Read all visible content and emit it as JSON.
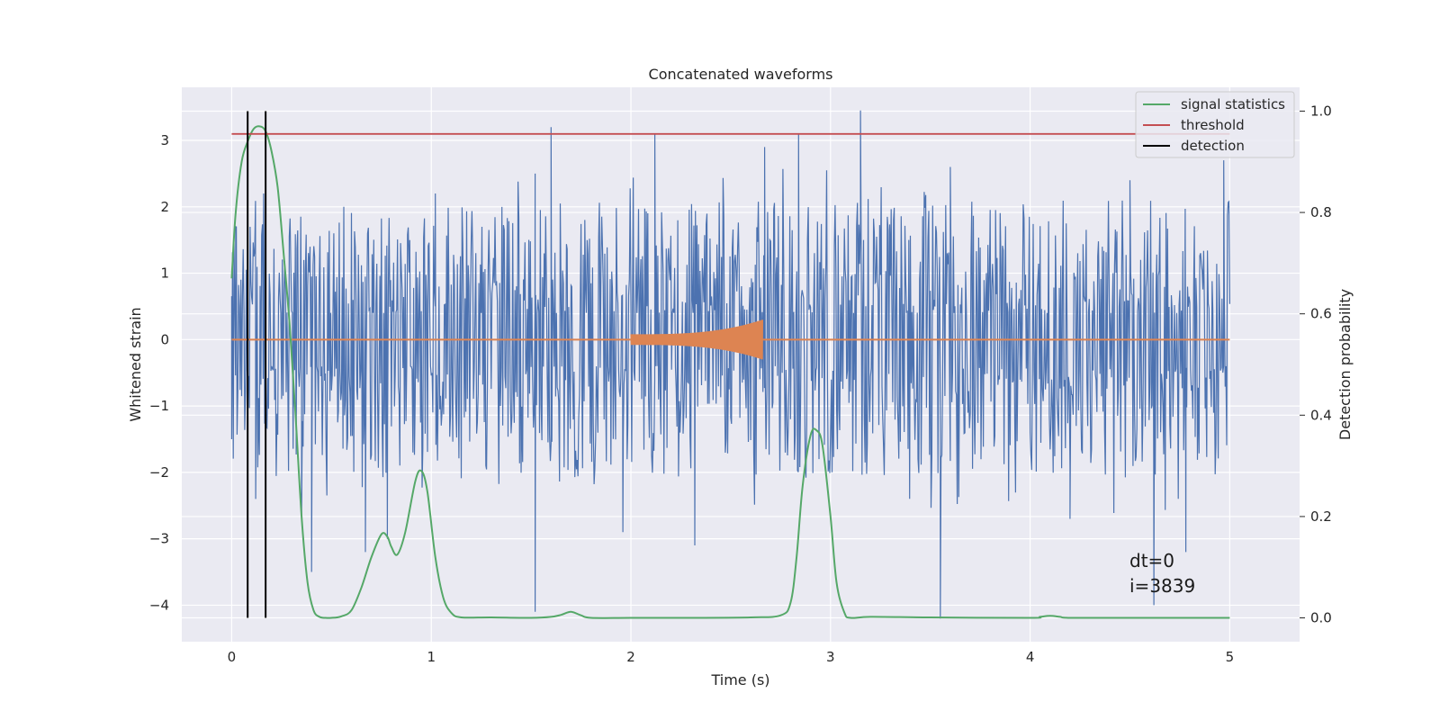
{
  "chart_data": {
    "type": "line",
    "title": "Concatenated waveforms",
    "xlabel": "Time (s)",
    "ylabel": "Whitened strain",
    "y2label": "Detection probability",
    "xlim": [
      -0.25,
      5.35
    ],
    "ylim": [
      -4.55,
      3.8
    ],
    "y2lim": [
      -0.047,
      1.047
    ],
    "x_ticks": [
      {
        "value": 0,
        "label": "0"
      },
      {
        "value": 1,
        "label": "1"
      },
      {
        "value": 2,
        "label": "2"
      },
      {
        "value": 3,
        "label": "3"
      },
      {
        "value": 4,
        "label": "4"
      },
      {
        "value": 5,
        "label": "5"
      }
    ],
    "y_ticks": [
      {
        "value": -4,
        "label": "−4"
      },
      {
        "value": -3,
        "label": "−3"
      },
      {
        "value": -2,
        "label": "−2"
      },
      {
        "value": -1,
        "label": "−1"
      },
      {
        "value": 0,
        "label": "0"
      },
      {
        "value": 1,
        "label": "1"
      },
      {
        "value": 2,
        "label": "2"
      },
      {
        "value": 3,
        "label": "3"
      }
    ],
    "y2_ticks": [
      {
        "value": 0.0,
        "label": "0.0"
      },
      {
        "value": 0.2,
        "label": "0.2"
      },
      {
        "value": 0.4,
        "label": "0.4"
      },
      {
        "value": 0.6,
        "label": "0.6"
      },
      {
        "value": 0.8,
        "label": "0.8"
      },
      {
        "value": 1.0,
        "label": "1.0"
      }
    ],
    "grid": true,
    "legend_position": "top-right",
    "colors": {
      "background": "#eaeaf2",
      "grid": "#ffffff",
      "strain": "#4c72b0",
      "injection": "#dd8452",
      "signal_statistics": "#55a868",
      "threshold": "#c44e52",
      "detection": "#000000"
    },
    "legend": [
      {
        "label": "signal statistics",
        "color": "#55a868"
      },
      {
        "label": "threshold",
        "color": "#c44e52"
      },
      {
        "label": "detection",
        "color": "#000000"
      }
    ],
    "threshold_prob": 0.955,
    "detections_x": [
      0.08,
      0.17
    ],
    "strain": {
      "t_start": 0.0,
      "t_end": 5.0,
      "typical_upper": 1.9,
      "typical_lower": -1.9,
      "peaks": [
        {
          "x": 0.0,
          "y": -1.5
        },
        {
          "x": 0.02,
          "y": 1.7
        },
        {
          "x": 0.12,
          "y": -2.4
        },
        {
          "x": 0.16,
          "y": 2.2
        },
        {
          "x": 0.35,
          "y": -2.7
        },
        {
          "x": 0.4,
          "y": -3.5
        },
        {
          "x": 0.67,
          "y": -3.2
        },
        {
          "x": 0.78,
          "y": -3.0
        },
        {
          "x": 1.02,
          "y": 2.2
        },
        {
          "x": 1.52,
          "y": 2.5
        },
        {
          "x": 1.52,
          "y": -4.1
        },
        {
          "x": 1.6,
          "y": 3.2
        },
        {
          "x": 1.96,
          "y": -2.9
        },
        {
          "x": 2.12,
          "y": 3.1
        },
        {
          "x": 2.32,
          "y": -3.1
        },
        {
          "x": 2.67,
          "y": 2.9
        },
        {
          "x": 2.84,
          "y": 3.1
        },
        {
          "x": 3.15,
          "y": 3.45
        },
        {
          "x": 3.55,
          "y": -4.2
        },
        {
          "x": 3.6,
          "y": 2.6
        },
        {
          "x": 4.2,
          "y": -2.7
        },
        {
          "x": 4.5,
          "y": 2.4
        },
        {
          "x": 4.62,
          "y": -4.0
        },
        {
          "x": 4.78,
          "y": -3.2
        },
        {
          "x": 4.97,
          "y": 2.7
        }
      ]
    },
    "injection": {
      "t_start": 2.0,
      "t_end": 2.66,
      "amp_start": 0.08,
      "amp_end": 0.3
    },
    "signal_statistics": {
      "x": [
        0.0,
        0.02,
        0.05,
        0.08,
        0.11,
        0.14,
        0.17,
        0.2,
        0.23,
        0.26,
        0.29,
        0.32,
        0.35,
        0.38,
        0.41,
        0.44,
        0.47,
        0.5,
        0.55,
        0.6,
        0.65,
        0.7,
        0.75,
        0.78,
        0.8,
        0.83,
        0.87,
        0.92,
        0.95,
        0.98,
        1.02,
        1.06,
        1.1,
        1.15,
        1.3,
        1.5,
        1.6,
        1.65,
        1.7,
        1.75,
        1.8,
        2.0,
        2.3,
        2.6,
        2.75,
        2.8,
        2.83,
        2.86,
        2.9,
        2.93,
        2.96,
        3.0,
        3.03,
        3.07,
        3.1,
        3.2,
        3.5,
        4.0,
        4.05,
        4.1,
        4.15,
        4.2,
        4.5,
        5.0
      ],
      "y": [
        0.67,
        0.8,
        0.9,
        0.94,
        0.965,
        0.97,
        0.96,
        0.92,
        0.85,
        0.72,
        0.58,
        0.4,
        0.2,
        0.07,
        0.015,
        0.002,
        0.0,
        0.0,
        0.003,
        0.015,
        0.06,
        0.12,
        0.165,
        0.16,
        0.14,
        0.125,
        0.17,
        0.27,
        0.29,
        0.25,
        0.12,
        0.04,
        0.01,
        0.001,
        0.001,
        0.0,
        0.002,
        0.006,
        0.012,
        0.005,
        0.0,
        0.0,
        0.0,
        0.001,
        0.005,
        0.03,
        0.12,
        0.26,
        0.36,
        0.37,
        0.34,
        0.2,
        0.07,
        0.01,
        0.0,
        0.002,
        0.001,
        0.0,
        0.002,
        0.004,
        0.002,
        0.0,
        0.0,
        0.0
      ]
    }
  },
  "annotation": {
    "dt_label": "dt=0",
    "i_label": "i=3839"
  }
}
